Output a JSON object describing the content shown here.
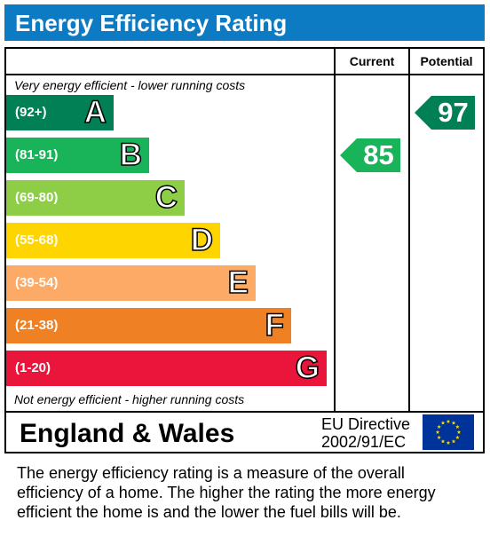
{
  "title": "Energy Efficiency Rating",
  "columns": {
    "current": "Current",
    "potential": "Potential"
  },
  "notes": {
    "top": "Very energy efficient - lower running costs",
    "bottom": "Not energy efficient - higher running costs"
  },
  "chart_data": {
    "type": "bar",
    "bands": [
      {
        "letter": "A",
        "range": "(92+)",
        "color": "#008054"
      },
      {
        "letter": "B",
        "range": "(81-91)",
        "color": "#19b459"
      },
      {
        "letter": "C",
        "range": "(69-80)",
        "color": "#8dce46"
      },
      {
        "letter": "D",
        "range": "(55-68)",
        "color": "#ffd500"
      },
      {
        "letter": "E",
        "range": "(39-54)",
        "color": "#fcaa65"
      },
      {
        "letter": "F",
        "range": "(21-38)",
        "color": "#ef8023"
      },
      {
        "letter": "G",
        "range": "(1-20)",
        "color": "#e9153b"
      }
    ],
    "current": {
      "value": "85",
      "band": "B",
      "color": "#19b459"
    },
    "potential": {
      "value": "97",
      "band": "A",
      "color": "#008054"
    }
  },
  "footer": {
    "region": "England & Wales",
    "directive_line1": "EU Directive",
    "directive_line2": "2002/91/EC"
  },
  "description_lines": [
    "The energy efficiency rating is a measure of the overall",
    "efficiency of a home.  The higher the rating the more energy",
    "efficient the home is and the lower the fuel bills will be."
  ]
}
